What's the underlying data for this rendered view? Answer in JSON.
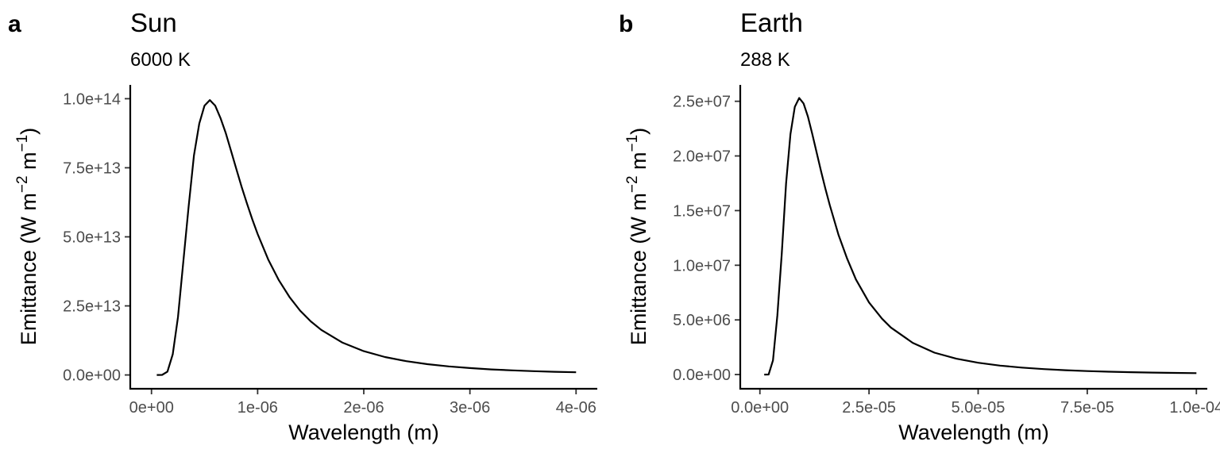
{
  "chart_data": [
    {
      "type": "line",
      "tag": "a",
      "title": "Sun",
      "subtitle": "6000 K",
      "xlabel": "Wavelength (m)",
      "ylabel_main": "Emittance (W m",
      "ylabel_sup1": "−2",
      "ylabel_mid": " m",
      "ylabel_sup2": "−1",
      "ylabel_end": ")",
      "xlim": [
        -2e-07,
        4.2e-06
      ],
      "ylim": [
        -5000000000000.0,
        105000000000000.0
      ],
      "x_ticks": [
        0,
        1e-06,
        2e-06,
        3e-06,
        4e-06
      ],
      "x_tick_labels": [
        "0e+00",
        "1e-06",
        "2e-06",
        "3e-06",
        "4e-06"
      ],
      "y_ticks": [
        0,
        25000000000000.0,
        50000000000000.0,
        75000000000000.0,
        100000000000000.0
      ],
      "y_tick_labels": [
        "0.0e+00",
        "2.5e+13",
        "5.0e+13",
        "7.5e+13",
        "1.0e+14"
      ],
      "x": [
        5e-08,
        1e-07,
        1.5e-07,
        2e-07,
        2.5e-07,
        3e-07,
        3.5e-07,
        4e-07,
        4.5e-07,
        5e-07,
        5.5e-07,
        6e-07,
        6.5e-07,
        7e-07,
        7.5e-07,
        8e-07,
        8.5e-07,
        9e-07,
        9.5e-07,
        1e-06,
        1.1e-06,
        1.2e-06,
        1.3e-06,
        1.4e-06,
        1.5e-06,
        1.6e-06,
        1.8e-06,
        2e-06,
        2.2e-06,
        2.4e-06,
        2.6e-06,
        2.8e-06,
        3e-06,
        3.2e-06,
        3.4e-06,
        3.6e-06,
        3.8e-06,
        4e-06
      ],
      "y": [
        0,
        30000000000.0,
        1200000000000.0,
        7500000000000.0,
        21000000000000.0,
        41000000000000.0,
        61000000000000.0,
        79500000000000.0,
        91000000000000.0,
        97500000000000.0,
        99500000000000.0,
        97500000000000.0,
        93000000000000.0,
        87500000000000.0,
        81000000000000.0,
        74500000000000.0,
        68000000000000.0,
        62000000000000.0,
        56300000000000.0,
        51000000000000.0,
        41800000000000.0,
        34300000000000.0,
        28200000000000.0,
        23300000000000.0,
        19400000000000.0,
        16300000000000.0,
        11700000000000.0,
        8600000000000.0,
        6500000000000.0,
        5000000000000.0,
        3900000000000.0,
        3100000000000.0,
        2500000000000.0,
        2000000000000.0,
        1650000000000.0,
        1370000000000.0,
        1150000000000.0,
        970000000000.0
      ]
    },
    {
      "type": "line",
      "tag": "b",
      "title": "Earth",
      "subtitle": "288 K",
      "xlabel": "Wavelength (m)",
      "ylabel_main": "Emittance (W m",
      "ylabel_sup1": "−2",
      "ylabel_mid": " m",
      "ylabel_sup2": "−1",
      "ylabel_end": ")",
      "xlim": [
        -4.5e-06,
        0.0001025
      ],
      "ylim": [
        -1300000.0,
        26500000.0
      ],
      "x_ticks": [
        0,
        2.5e-05,
        5e-05,
        7.5e-05,
        0.0001
      ],
      "x_tick_labels": [
        "0.0e+00",
        "2.5e-05",
        "5.0e-05",
        "7.5e-05",
        "1.0e-04"
      ],
      "y_ticks": [
        0,
        5000000.0,
        10000000.0,
        15000000.0,
        20000000.0,
        25000000.0
      ],
      "y_tick_labels": [
        "0.0e+00",
        "5.0e+06",
        "1.0e+07",
        "1.5e+07",
        "2.0e+07",
        "2.5e+07"
      ],
      "x": [
        1e-06,
        2e-06,
        3e-06,
        4e-06,
        5e-06,
        6e-06,
        7e-06,
        8e-06,
        9e-06,
        1e-05,
        1.1e-05,
        1.2e-05,
        1.3e-05,
        1.4e-05,
        1.5e-05,
        1.6e-05,
        1.8e-05,
        2e-05,
        2.2e-05,
        2.5e-05,
        2.8e-05,
        3e-05,
        3.5e-05,
        4e-05,
        4.5e-05,
        5e-05,
        5.5e-05,
        6e-05,
        6.5e-05,
        7e-05,
        7.5e-05,
        8e-05,
        8.5e-05,
        9e-05,
        9.5e-05,
        0.0001
      ],
      "y": [
        0,
        10000.0,
        1300000.0,
        5400000.0,
        11000000.0,
        17500000.0,
        22000000.0,
        24500000.0,
        25300000.0,
        24800000.0,
        23600000.0,
        22000000.0,
        20300000.0,
        18600000.0,
        17000000.0,
        15500000.0,
        12800000.0,
        10600000.0,
        8700000.0,
        6600000.0,
        5100000.0,
        4300000.0,
        2900000.0,
        2000000.0,
        1450000.0,
        1080000.0,
        820000.0,
        640000.0,
        500000.0,
        400000.0,
        320000.0,
        260000.0,
        215000.0,
        180000.0,
        150000.0,
        130000.0
      ]
    }
  ]
}
